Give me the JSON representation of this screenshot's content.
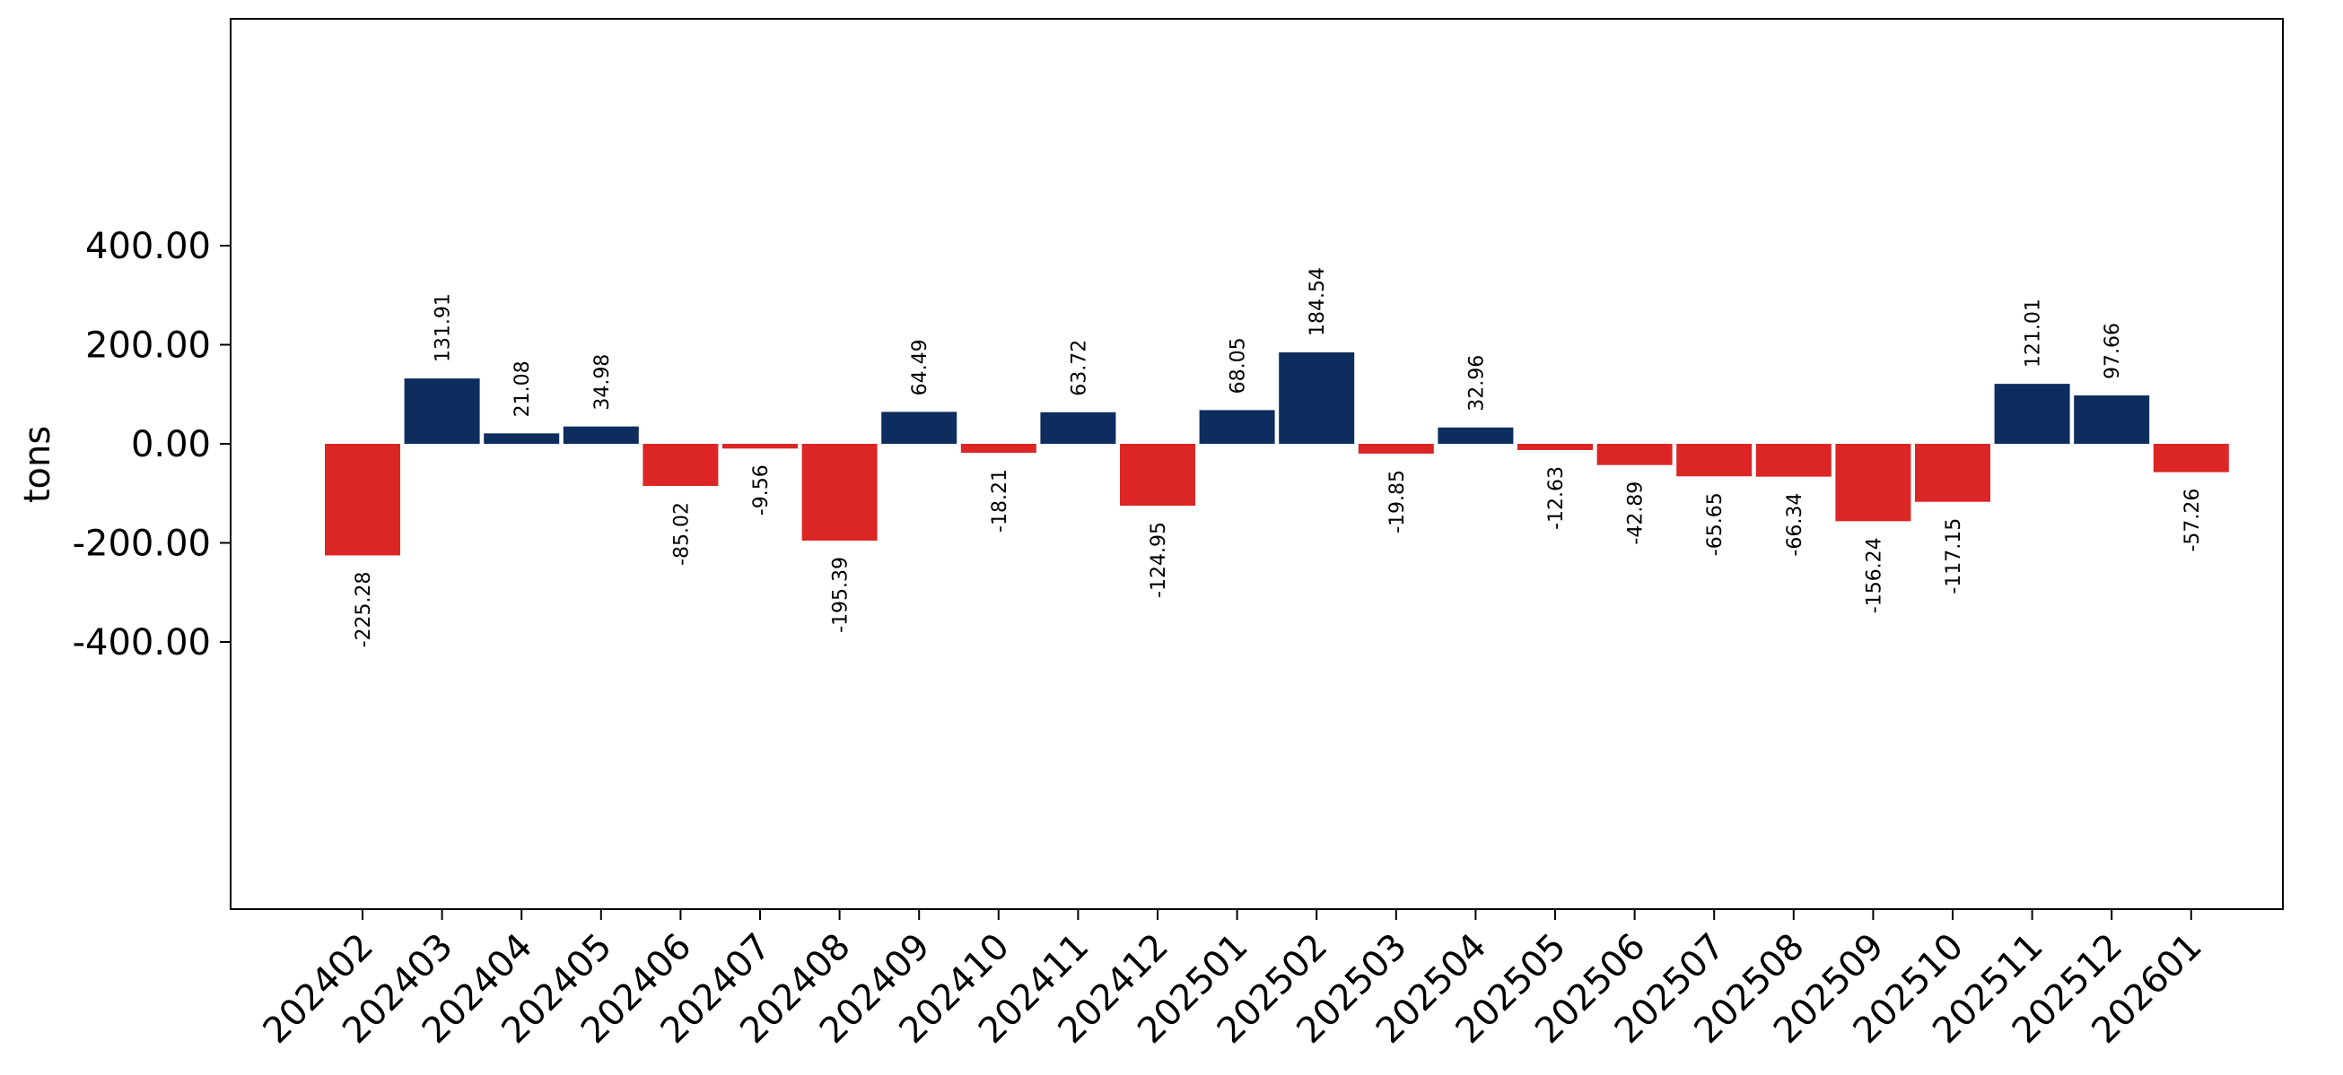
{
  "chart_data": {
    "type": "bar",
    "title": "",
    "xlabel": "",
    "ylabel": "tons",
    "ylim": [
      -470,
      430
    ],
    "yticks": [
      400,
      200,
      0,
      -200,
      -400
    ],
    "ytick_labels": [
      "400.00",
      "200.00",
      "0.00",
      "-200.00",
      "-400.00"
    ],
    "grid": false,
    "legend": "none",
    "colors": {
      "positive": "#0d2d5e",
      "negative": "#dc2626"
    },
    "categories": [
      "202402",
      "202403",
      "202404",
      "202405",
      "202406",
      "202407",
      "202408",
      "202409",
      "202410",
      "202411",
      "202412",
      "202501",
      "202502",
      "202503",
      "202504",
      "202505",
      "202506",
      "202507",
      "202508",
      "202509",
      "202510",
      "202511",
      "202512",
      "202601"
    ],
    "values": [
      -225.28,
      131.91,
      21.08,
      34.98,
      -85.02,
      -9.56,
      -195.39,
      64.49,
      -18.21,
      63.72,
      -124.95,
      68.05,
      184.54,
      -19.85,
      32.96,
      -12.63,
      -42.89,
      -65.65,
      -66.34,
      -156.24,
      -117.15,
      121.01,
      97.66,
      -57.26
    ],
    "value_labels": [
      "-225.28",
      "131.91",
      "21.08",
      "34.98",
      "-85.02",
      "-9.56",
      "-195.39",
      "64.49",
      "-18.21",
      "63.72",
      "-124.95",
      "68.05",
      "184.54",
      "-19.85",
      "32.96",
      "-12.63",
      "-42.89",
      "-65.65",
      "-66.34",
      "-156.24",
      "-117.15",
      "121.01",
      "97.66",
      "-57.26"
    ]
  }
}
